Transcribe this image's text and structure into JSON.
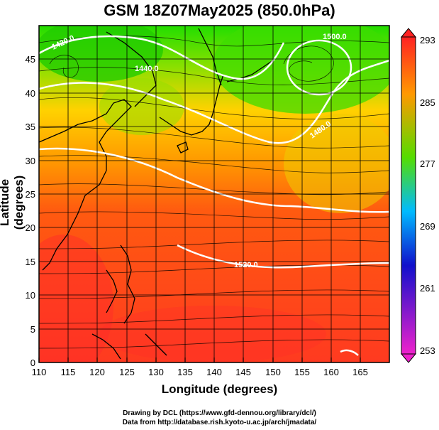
{
  "title": "GSM 18Z07May2025 (850.0hPa)",
  "xlabel": "Longitude (degrees)",
  "ylabel": "Latitude  (degrees)",
  "credits": [
    "Drawing by DCL (https://www.gfd-dennou.org/library/dcl/)",
    "Data from http://database.rish.kyoto-u.ac.jp/arch/jmadata/"
  ],
  "x_ticks": [
    "110",
    "115",
    "120",
    "125",
    "130",
    "135",
    "140",
    "145",
    "150",
    "155",
    "160",
    "165"
  ],
  "y_ticks": [
    "0",
    "5",
    "10",
    "15",
    "20",
    "25",
    "30",
    "35",
    "40",
    "45"
  ],
  "colorbar": {
    "labels": [
      "293",
      "285",
      "277",
      "269",
      "261",
      "253"
    ],
    "colors": [
      "#ff1a1a",
      "#ff9900",
      "#33cc00",
      "#00bbff",
      "#1010cc",
      "#ee22cc"
    ]
  },
  "contour_labels": [
    "1440.0",
    "1520.0",
    "1480.0",
    "1420.0",
    "1500.0"
  ],
  "map": {
    "lon_range": [
      110,
      170
    ],
    "lat_range": [
      0,
      50
    ],
    "field": "temperature",
    "overlays": [
      "streamlines",
      "geopotential contours",
      "coastlines",
      "lat-lon grid"
    ]
  }
}
